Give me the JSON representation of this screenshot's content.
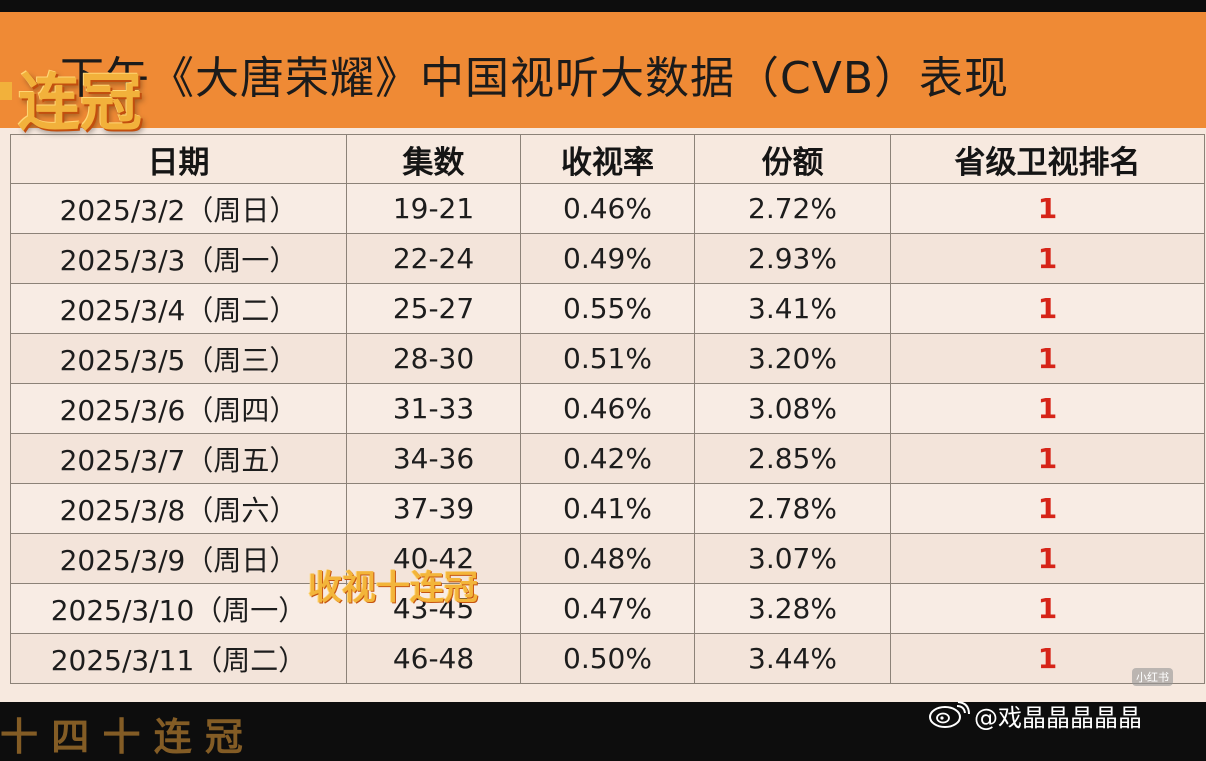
{
  "title": "下午《大唐荣耀》中国视听大数据（CVB）表现",
  "sticker": "连冠",
  "overlay_text": "收视十连冠",
  "table": {
    "headers": [
      "日期",
      "集数",
      "收视率",
      "份额",
      "省级卫视排名"
    ],
    "rows": [
      [
        "2025/3/2（周日）",
        "19-21",
        "0.46%",
        "2.72%",
        "1"
      ],
      [
        "2025/3/3（周一）",
        "22-24",
        "0.49%",
        "2.93%",
        "1"
      ],
      [
        "2025/3/4（周二）",
        "25-27",
        "0.55%",
        "3.41%",
        "1"
      ],
      [
        "2025/3/5（周三）",
        "28-30",
        "0.51%",
        "3.20%",
        "1"
      ],
      [
        "2025/3/6（周四）",
        "31-33",
        "0.46%",
        "3.08%",
        "1"
      ],
      [
        "2025/3/7（周五）",
        "34-36",
        "0.42%",
        "2.85%",
        "1"
      ],
      [
        "2025/3/8（周六）",
        "37-39",
        "0.41%",
        "2.78%",
        "1"
      ],
      [
        "2025/3/9（周日）",
        "40-42",
        "0.48%",
        "3.07%",
        "1"
      ],
      [
        "2025/3/10（周一）",
        "43-45",
        "0.47%",
        "3.28%",
        "1"
      ],
      [
        "2025/3/11（周二）",
        "46-48",
        "0.50%",
        "3.44%",
        "1"
      ]
    ]
  },
  "footer_text": "十 四 十 连 冠",
  "watermark": {
    "xhs": "小红书",
    "weibo": "@戏晶晶晶晶晶"
  },
  "colors": {
    "header_orange": "#ef8a35",
    "rank_red": "#d62418",
    "sticker_gold": "#f2b13b"
  }
}
